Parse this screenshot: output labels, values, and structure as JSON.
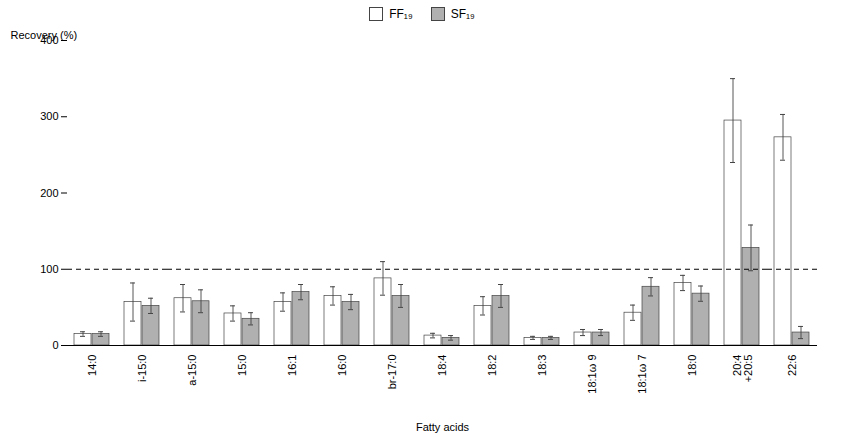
{
  "chart_data": {
    "type": "bar",
    "categories": [
      "14:0",
      "i-15:0",
      "a-15:0",
      "15:0",
      "16:1",
      "16:0",
      "br-17:0",
      "18:4",
      "18:2",
      "18:3",
      "18:1ω 9",
      "18:1ω 7",
      "18:0",
      "20:4\n+20:5",
      "22:6"
    ],
    "series": [
      {
        "name": "FF₁₉",
        "color": "#ffffff",
        "values": [
          15,
          57,
          62,
          42,
          57,
          65,
          88,
          13,
          52,
          10,
          17,
          43,
          82,
          295,
          273
        ],
        "errors": [
          3,
          25,
          18,
          10,
          12,
          12,
          22,
          3,
          12,
          2,
          4,
          10,
          10,
          55,
          30
        ]
      },
      {
        "name": "SF₁₉",
        "color": "#b0b0b0",
        "values": [
          15,
          52,
          58,
          35,
          70,
          57,
          65,
          10,
          65,
          10,
          17,
          77,
          68,
          128,
          17
        ],
        "errors": [
          3,
          10,
          15,
          8,
          10,
          10,
          15,
          3,
          15,
          2,
          4,
          12,
          10,
          30,
          8
        ]
      }
    ],
    "hlines": [
      {
        "y": 100,
        "line_style": "dashed"
      }
    ],
    "xlabel": "Fatty acids",
    "ylabel": "Recovery (%)",
    "ylim": [
      0,
      400
    ],
    "yticks": [
      0,
      100,
      200,
      300,
      400
    ],
    "grid": false,
    "legend": "top"
  }
}
